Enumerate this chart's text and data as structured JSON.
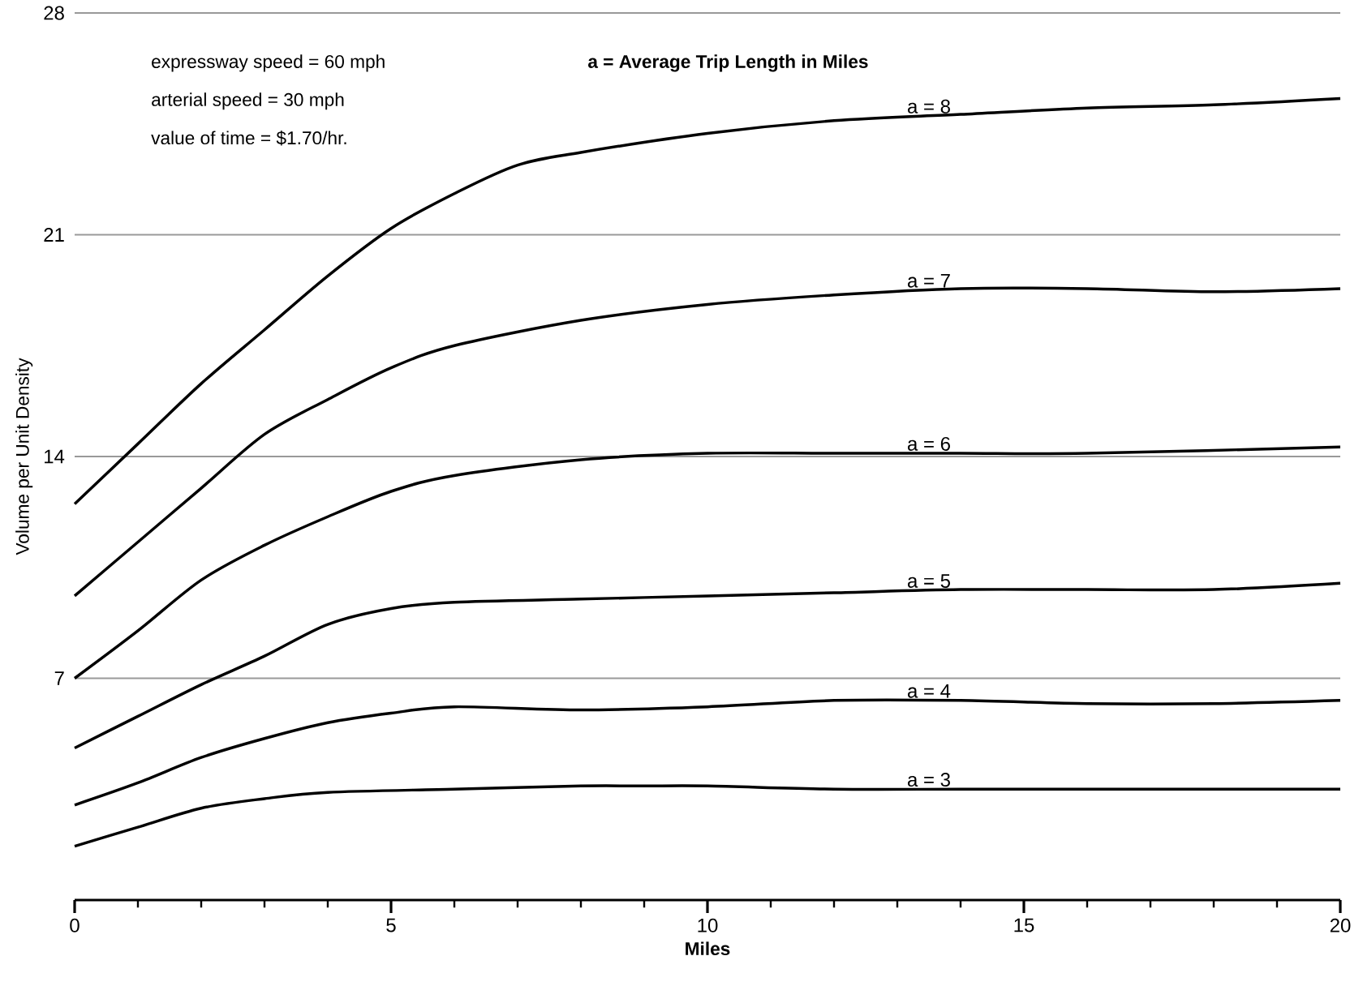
{
  "chart_data": {
    "type": "line",
    "xlabel": "Miles",
    "ylabel": "Volume per Unit Density",
    "annotations": [
      "expressway speed = 60 mph",
      "arterial speed = 30 mph",
      "value of time = $1.70/hr.",
      "a = Average Trip Length in Miles"
    ],
    "xlim": [
      0,
      20
    ],
    "ylim": [
      0,
      28
    ],
    "xticks": [
      0,
      {
        "value": 1,
        "label": null
      },
      {
        "value": 2,
        "label": null
      },
      {
        "value": 3,
        "label": null
      },
      {
        "value": 4,
        "label": null
      },
      5,
      {
        "value": 6,
        "label": null
      },
      {
        "value": 7,
        "label": null
      },
      {
        "value": 8,
        "label": null
      },
      {
        "value": 9,
        "label": null
      },
      10,
      {
        "value": 11,
        "label": null
      },
      {
        "value": 12,
        "label": null
      },
      {
        "value": 13,
        "label": null
      },
      {
        "value": 14,
        "label": null
      },
      15,
      {
        "value": 16,
        "label": null
      },
      {
        "value": 17,
        "label": null
      },
      {
        "value": 18,
        "label": null
      },
      {
        "value": 19,
        "label": null
      },
      20
    ],
    "yticks": [
      7,
      14,
      21,
      28
    ],
    "grid": "y",
    "line_style": "solid",
    "series": [
      {
        "name": "a = 8",
        "color": "#000000",
        "x": [
          0,
          1,
          2,
          3,
          4,
          5,
          6,
          7,
          8,
          10,
          12,
          14,
          16,
          18,
          20
        ],
        "values": [
          12.5,
          14.4,
          16.3,
          18.0,
          19.7,
          21.2,
          22.3,
          23.2,
          23.6,
          24.2,
          24.6,
          24.8,
          25.0,
          25.1,
          25.3
        ]
      },
      {
        "name": "a = 7",
        "color": "#000000",
        "x": [
          0,
          1,
          2,
          3,
          4,
          5,
          6,
          8,
          10,
          12,
          14,
          16,
          18,
          20
        ],
        "values": [
          9.6,
          11.3,
          13.0,
          14.7,
          15.8,
          16.8,
          17.5,
          18.3,
          18.8,
          19.1,
          19.3,
          19.3,
          19.2,
          19.3
        ]
      },
      {
        "name": "a = 6",
        "color": "#000000",
        "x": [
          0,
          1,
          2,
          3,
          4,
          5,
          6,
          8,
          10,
          12,
          14,
          16,
          20
        ],
        "values": [
          7.0,
          8.5,
          10.1,
          11.2,
          12.1,
          12.9,
          13.4,
          13.9,
          14.1,
          14.1,
          14.1,
          14.1,
          14.3
        ]
      },
      {
        "name": "a = 5",
        "color": "#000000",
        "x": [
          0,
          1,
          2,
          3,
          4,
          5,
          6,
          8,
          10,
          12,
          14,
          16,
          18,
          20
        ],
        "values": [
          4.8,
          5.8,
          6.8,
          7.7,
          8.7,
          9.2,
          9.4,
          9.5,
          9.6,
          9.7,
          9.8,
          9.8,
          9.8,
          10.0
        ]
      },
      {
        "name": "a = 4",
        "color": "#000000",
        "x": [
          0,
          1,
          2,
          3,
          4,
          5,
          6,
          8,
          10,
          12,
          14,
          16,
          18,
          20
        ],
        "values": [
          3.0,
          3.7,
          4.5,
          5.1,
          5.6,
          5.9,
          6.1,
          6.0,
          6.1,
          6.3,
          6.3,
          6.2,
          6.2,
          6.3
        ]
      },
      {
        "name": "a = 3",
        "color": "#000000",
        "x": [
          0,
          1,
          2,
          3,
          4,
          6,
          8,
          9,
          10,
          12,
          14,
          16,
          20
        ],
        "values": [
          1.7,
          2.3,
          2.9,
          3.2,
          3.4,
          3.5,
          3.6,
          3.6,
          3.6,
          3.5,
          3.5,
          3.5,
          3.5
        ]
      }
    ]
  }
}
